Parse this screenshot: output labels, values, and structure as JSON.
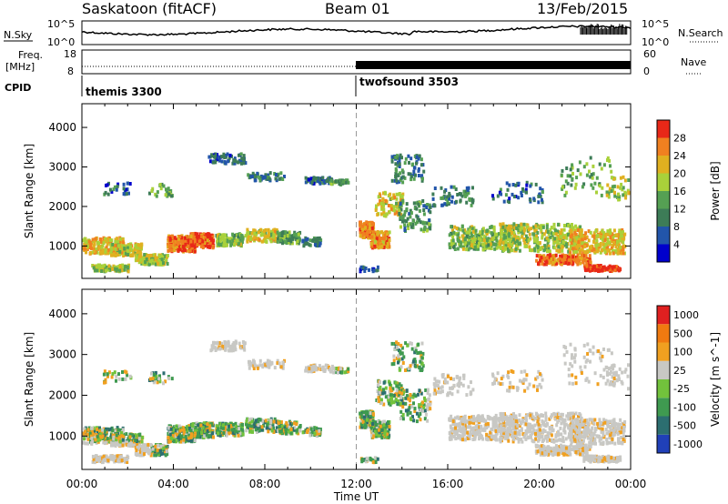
{
  "header": {
    "station": "Saskatoon (fitACF)",
    "beam": "Beam 01",
    "date": "13/Feb/2015"
  },
  "top_panel": {
    "left_labels": {
      "nsky": "N.Sky",
      "freq": "Freq.",
      "freq_unit": "[MHz]",
      "cpid": "CPID"
    },
    "right_labels": {
      "nsearch": "N.Search",
      "nave": "Nave"
    },
    "noise_ticks": {
      "top": "10^5",
      "bottom": "10^0"
    },
    "freq_ticks": [
      "18",
      "8"
    ],
    "nave_ticks": [
      "60",
      "0"
    ],
    "cpid_segments": [
      "themis 3300",
      "twofsound 3503"
    ]
  },
  "chart_data": [
    {
      "type": "heatmap",
      "title": "",
      "xlabel": "",
      "ylabel": "Slant Range [km]",
      "colorbar_label": "Power [dB]",
      "xlim": [
        0,
        24
      ],
      "ylim": [
        180,
        4600
      ],
      "x_ticks": [
        "00:00",
        "04:00",
        "08:00",
        "12:00",
        "16:00",
        "20:00",
        "00:00"
      ],
      "y_ticks": [
        1000,
        2000,
        3000,
        4000
      ],
      "colorbar_ticks": [
        "28",
        "24",
        "20",
        "16",
        "12",
        "8",
        "4"
      ],
      "colors": [
        "#0000cc",
        "#2255aa",
        "#3d7c57",
        "#55a053",
        "#a9d13a",
        "#e0b020",
        "#f08020",
        "#e82818"
      ]
    },
    {
      "type": "heatmap",
      "title": "",
      "xlabel": "Time UT",
      "ylabel": "Slant Range [km]",
      "colorbar_label": "Velocity [m s^-1]",
      "xlim": [
        0,
        24
      ],
      "ylim": [
        180,
        4600
      ],
      "x_ticks": [
        "00:00",
        "04:00",
        "08:00",
        "12:00",
        "16:00",
        "20:00",
        "00:00"
      ],
      "y_ticks": [
        1000,
        2000,
        3000,
        4000
      ],
      "colorbar_ticks": [
        "1000",
        "500",
        "100",
        "25",
        "-25",
        "-100",
        "-500",
        "-1000"
      ],
      "colors": [
        "#2040b8",
        "#2c6e70",
        "#3f9a50",
        "#72c23c",
        "#c8c8c4",
        "#f0a020",
        "#f07a10",
        "#e02020"
      ]
    }
  ]
}
